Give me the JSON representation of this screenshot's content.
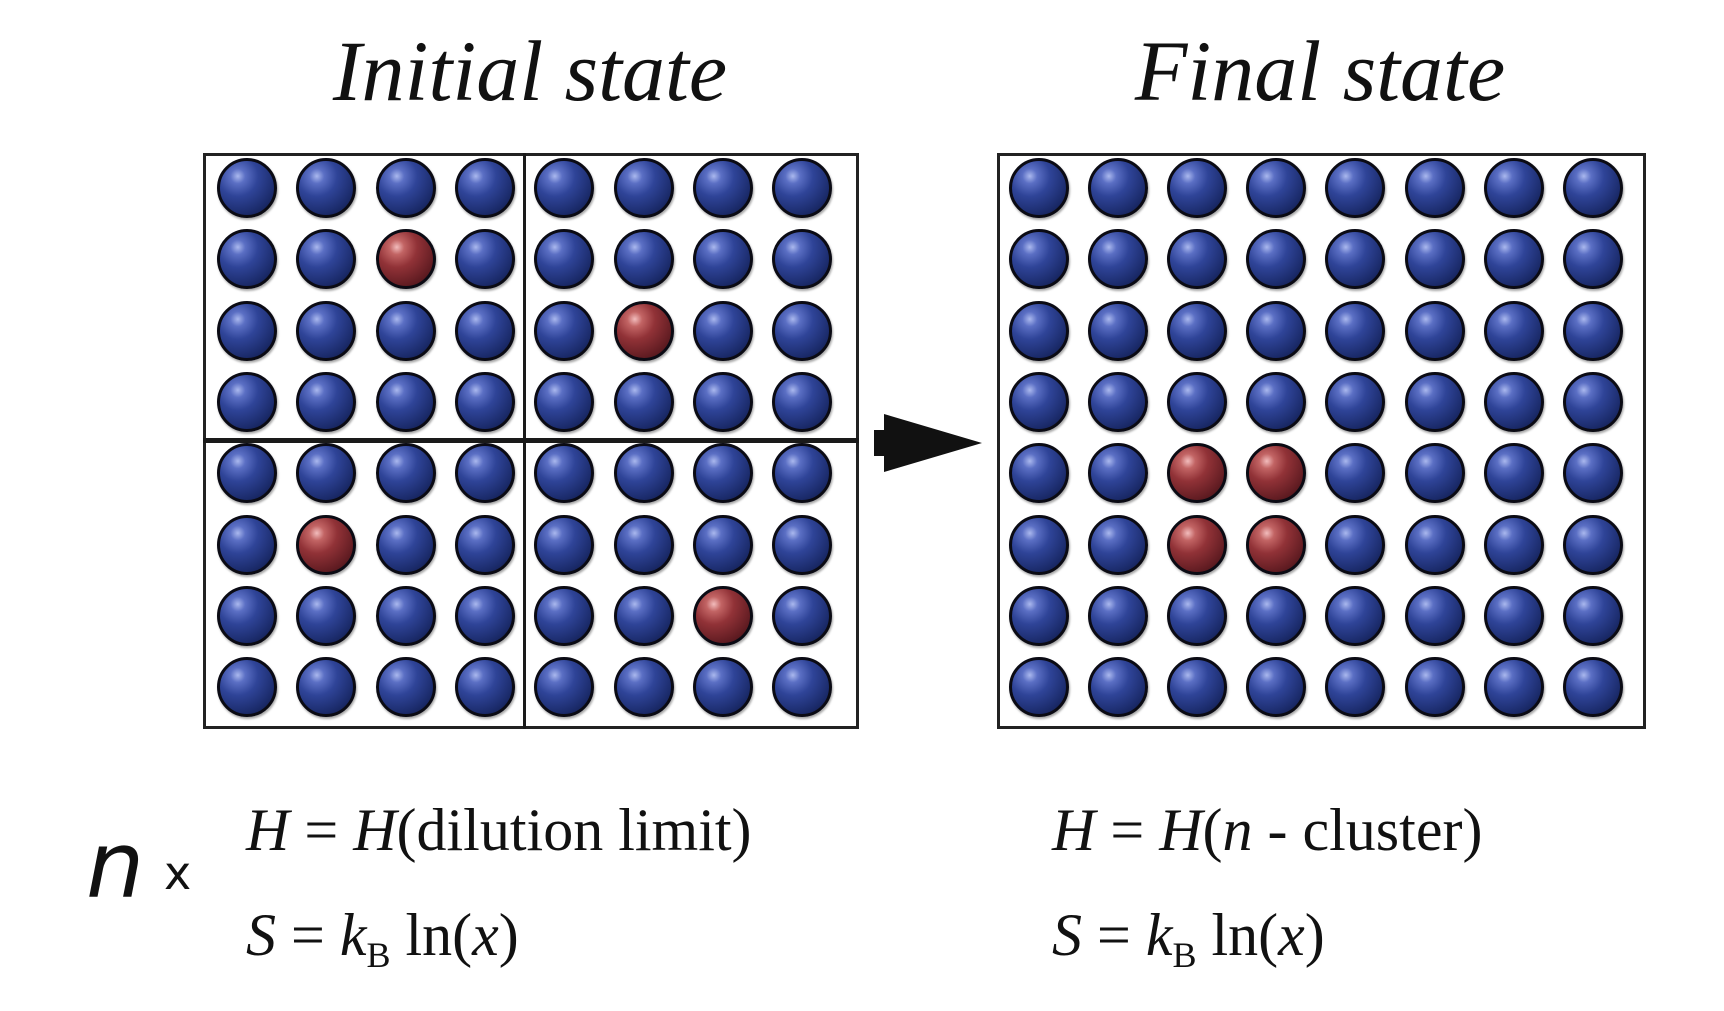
{
  "initial_state": {
    "title": "Initial state",
    "grid": {
      "rows": 8,
      "cols": 8
    },
    "subdivisions": {
      "rows": 2,
      "cols": 2
    },
    "solute_atoms": [
      [
        1,
        2
      ],
      [
        2,
        5
      ],
      [
        5,
        1
      ],
      [
        6,
        6
      ]
    ],
    "host_color": "#2f4498",
    "solute_color": "#913237",
    "equations": {
      "h": {
        "lhs": "H",
        "eq": "=",
        "rhs_func": "H",
        "open": "(",
        "arg": "dilution limit",
        "close": ")"
      },
      "s": {
        "lhs": "S",
        "eq": "=",
        "k": "k",
        "k_sub": "B",
        "ln": "ln(",
        "var": "x",
        "close": ")"
      }
    }
  },
  "final_state": {
    "title": "Final state",
    "grid": {
      "rows": 8,
      "cols": 8
    },
    "solute_atoms": [
      [
        4,
        2
      ],
      [
        4,
        3
      ],
      [
        5,
        2
      ],
      [
        5,
        3
      ]
    ],
    "equations": {
      "h": {
        "lhs": "H",
        "eq": "=",
        "rhs_func": "H",
        "open": "(",
        "n": "n",
        "dash": " - cluster",
        "close": ")"
      },
      "s": {
        "lhs": "S",
        "eq": "=",
        "k": "k",
        "k_sub": "B",
        "ln": "ln(",
        "var": "x",
        "close": ")"
      }
    }
  },
  "multiplier": {
    "symbol": "n",
    "times": "x"
  },
  "arrow": {
    "icon": "right-arrow-icon",
    "color": "#111111"
  }
}
